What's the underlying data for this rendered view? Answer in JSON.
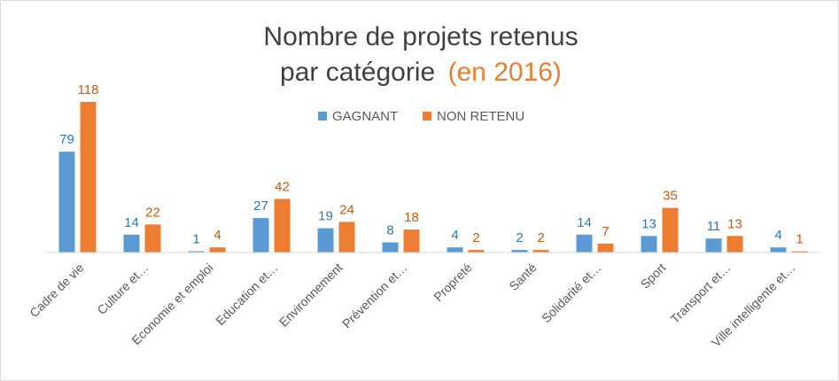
{
  "chart_data": {
    "type": "bar",
    "title": {
      "line1": "Nombre de projets retenus",
      "line2": "par catégorie",
      "accent": "(en 2016)"
    },
    "xlabel": "",
    "ylabel": "",
    "ylim": [
      0,
      118
    ],
    "grid": false,
    "legend_position": "top-center",
    "categories": [
      "Cadre de vie",
      "Culture et…",
      "Economie et emploi",
      "Education et…",
      "Environnement",
      "Prévention et…",
      "Propreté",
      "Santé",
      "Solidarité et…",
      "Sport",
      "Transport et…",
      "Ville intelligente et…"
    ],
    "series": [
      {
        "name": "GAGNANT",
        "color": "#5b9bd5",
        "label_color": "#2e75b6",
        "values": [
          79,
          14,
          1,
          27,
          19,
          8,
          4,
          2,
          14,
          13,
          11,
          4
        ]
      },
      {
        "name": "NON RETENU",
        "color": "#ed7d31",
        "label_color": "#c55a11",
        "values": [
          118,
          22,
          4,
          42,
          24,
          18,
          2,
          2,
          7,
          35,
          13,
          1
        ]
      }
    ],
    "colors": {
      "title": "#404040",
      "title_accent": "#ed7d31",
      "axis": "#d9d9d9",
      "text": "#595959"
    }
  }
}
